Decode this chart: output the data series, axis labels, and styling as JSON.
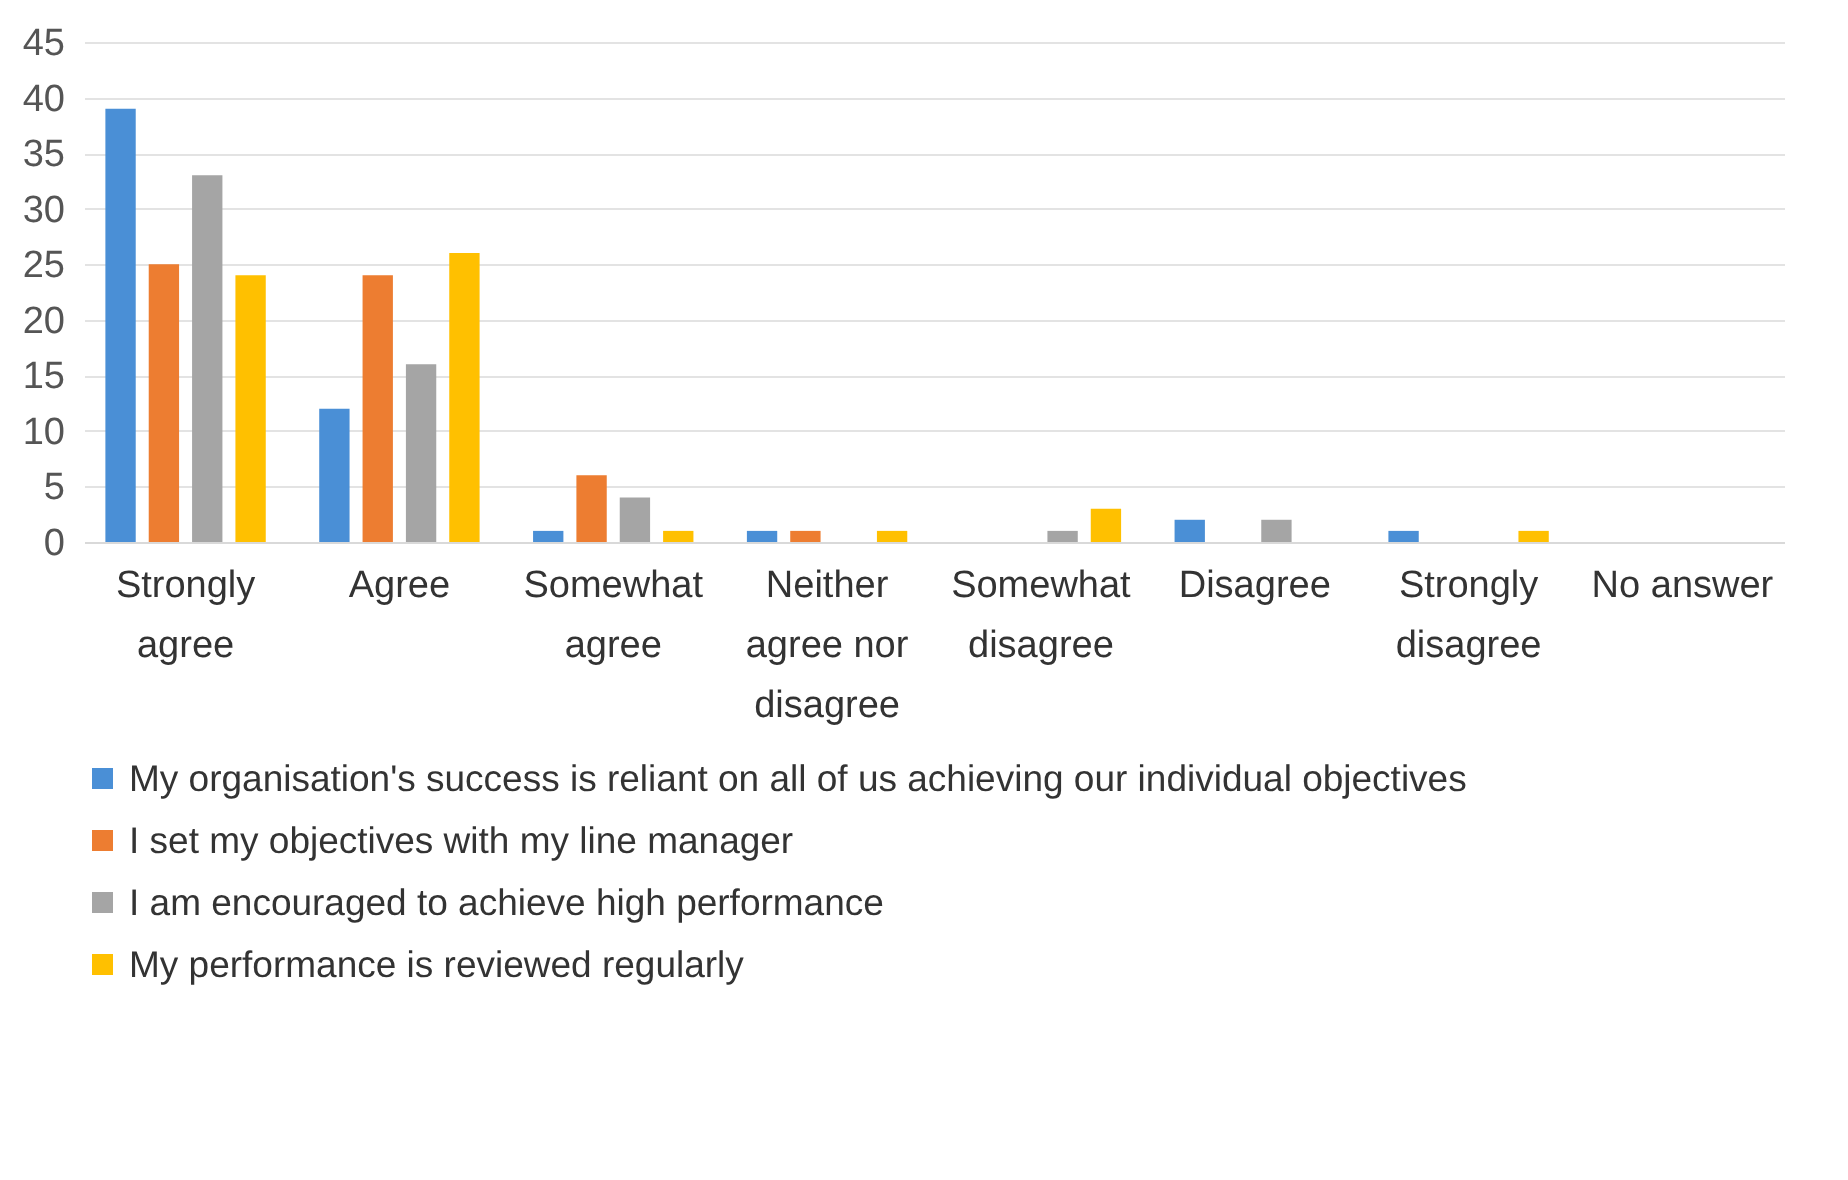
{
  "chart_data": {
    "type": "bar",
    "categories": [
      "Strongly agree",
      "Agree",
      "Somewhat agree",
      "Neither agree nor disagree",
      "Somewhat disagree",
      "Disagree",
      "Strongly disagree",
      "No answer"
    ],
    "series": [
      {
        "name": "My organisation's success is reliant on all of us achieving our individual objectives",
        "color": "#4a8fd6",
        "values": [
          39,
          12,
          1,
          1,
          0,
          2,
          1,
          0
        ]
      },
      {
        "name": "I set my objectives with my line manager",
        "color": "#ed7d31",
        "values": [
          25,
          24,
          6,
          1,
          0,
          0,
          0,
          0
        ]
      },
      {
        "name": "I am encouraged to achieve high performance",
        "color": "#a5a5a5",
        "values": [
          33,
          16,
          4,
          0,
          1,
          2,
          0,
          0
        ]
      },
      {
        "name": "My performance is reviewed regularly",
        "color": "#ffc000",
        "values": [
          24,
          26,
          1,
          1,
          3,
          0,
          1,
          0
        ]
      }
    ],
    "ylim": [
      0,
      45
    ],
    "yticks": [
      0,
      5,
      10,
      15,
      20,
      25,
      30,
      35,
      40,
      45
    ],
    "grid": "y",
    "legend": "bottom"
  }
}
